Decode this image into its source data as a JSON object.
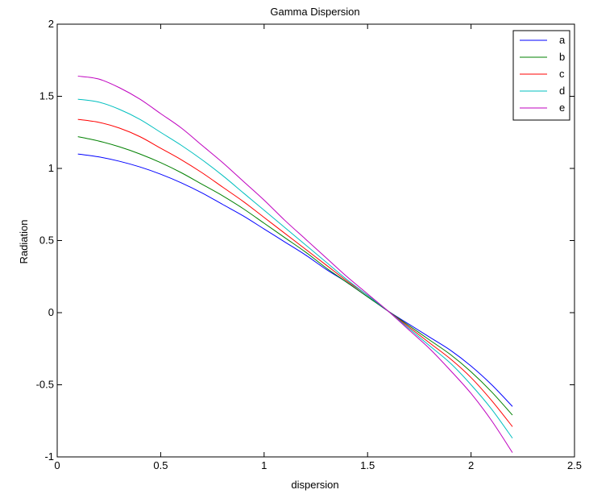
{
  "chart_data": {
    "type": "line",
    "title": "Gamma Dispersion",
    "xlabel": "dispersion",
    "ylabel": "Radiation",
    "xlim": [
      0,
      2.5
    ],
    "ylim": [
      -1,
      2
    ],
    "xticks": [
      0,
      0.5,
      1,
      1.5,
      2,
      2.5
    ],
    "yticks": [
      -1,
      -0.5,
      0,
      0.5,
      1,
      1.5,
      2
    ],
    "xtick_labels": [
      "0",
      "0.5",
      "1",
      "1.5",
      "2",
      "2.5"
    ],
    "ytick_labels": [
      "-1",
      "-0.5",
      "0",
      "0.5",
      "1",
      "1.5",
      "2"
    ],
    "grid": false,
    "legend_position": "top-right",
    "x": [
      0.1,
      0.2,
      0.3,
      0.4,
      0.5,
      0.6,
      0.7,
      0.8,
      0.9,
      1.0,
      1.1,
      1.2,
      1.3,
      1.4,
      1.5,
      1.6,
      1.7,
      1.8,
      1.9,
      2.0,
      2.1,
      2.2
    ],
    "series": [
      {
        "name": "a",
        "color": "#0000ff",
        "values": [
          1.1,
          1.08,
          1.05,
          1.01,
          0.96,
          0.9,
          0.83,
          0.75,
          0.67,
          0.58,
          0.49,
          0.4,
          0.3,
          0.21,
          0.11,
          0.01,
          -0.08,
          -0.17,
          -0.26,
          -0.37,
          -0.5,
          -0.65
        ]
      },
      {
        "name": "b",
        "color": "#008000",
        "values": [
          1.22,
          1.19,
          1.15,
          1.1,
          1.04,
          0.97,
          0.89,
          0.81,
          0.72,
          0.62,
          0.52,
          0.42,
          0.31,
          0.21,
          0.11,
          0.01,
          -0.09,
          -0.19,
          -0.29,
          -0.41,
          -0.55,
          -0.71
        ]
      },
      {
        "name": "c",
        "color": "#ff0000",
        "values": [
          1.34,
          1.32,
          1.28,
          1.22,
          1.14,
          1.06,
          0.97,
          0.87,
          0.77,
          0.66,
          0.55,
          0.44,
          0.33,
          0.22,
          0.12,
          0.01,
          -0.1,
          -0.21,
          -0.32,
          -0.45,
          -0.61,
          -0.79
        ]
      },
      {
        "name": "d",
        "color": "#00bfbf",
        "values": [
          1.48,
          1.46,
          1.41,
          1.34,
          1.25,
          1.16,
          1.06,
          0.95,
          0.83,
          0.71,
          0.59,
          0.47,
          0.35,
          0.23,
          0.12,
          0.01,
          -0.11,
          -0.23,
          -0.35,
          -0.5,
          -0.67,
          -0.87
        ]
      },
      {
        "name": "e",
        "color": "#bf00bf",
        "values": [
          1.64,
          1.62,
          1.56,
          1.48,
          1.38,
          1.28,
          1.16,
          1.04,
          0.91,
          0.78,
          0.64,
          0.51,
          0.38,
          0.25,
          0.13,
          0.01,
          -0.12,
          -0.25,
          -0.4,
          -0.56,
          -0.75,
          -0.97
        ]
      }
    ]
  }
}
